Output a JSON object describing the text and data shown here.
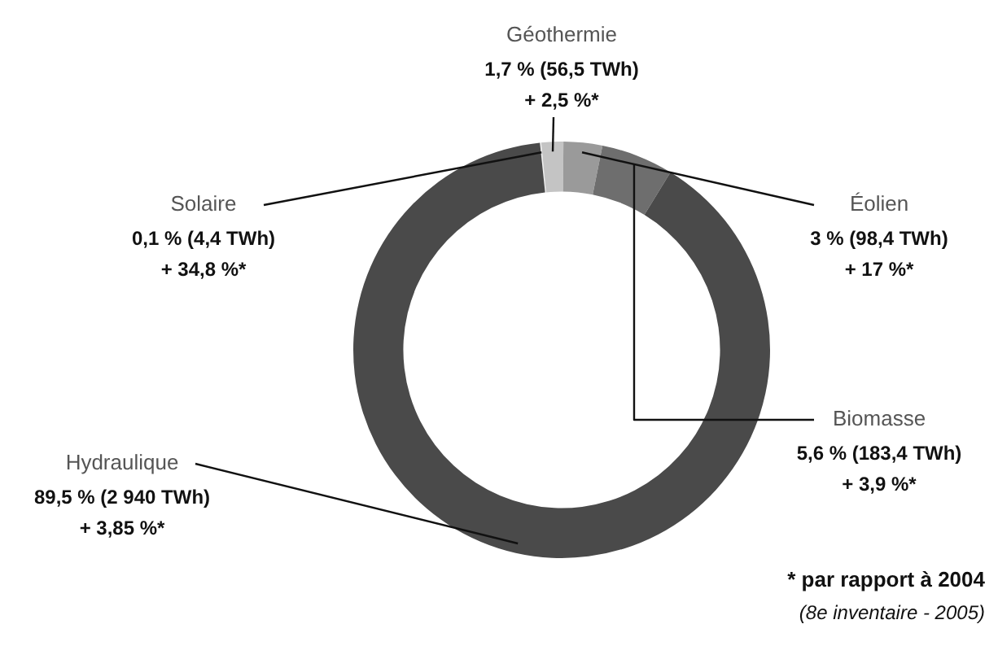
{
  "chart_data": {
    "type": "donut",
    "categories": [
      "Solaire",
      "Géothermie",
      "Éolien",
      "Biomasse",
      "Hydraulique"
    ],
    "values": [
      0.1,
      1.7,
      3,
      5.6,
      89.5
    ],
    "colors": [
      "#f2f2f2",
      "#c4c4c4",
      "#9a9a9a",
      "#6e6e6e",
      "#4a4a4a"
    ],
    "value_labels": [
      "0,1 % (4,4 TWh)\n+ 34,8 %*",
      "1,7 % (56,5 TWh)\n+ 2,5 %*",
      "3 % (98,4 TWh)\n+ 17 %*",
      "5,6 % (183,4 TWh)\n+ 3,9 %*",
      "89,5 % (2 940 TWh)\n+ 3,85 %*"
    ],
    "annotations": [
      "* par rapport à 2004",
      "(8e inventaire - 2005)"
    ],
    "legend": false
  }
}
